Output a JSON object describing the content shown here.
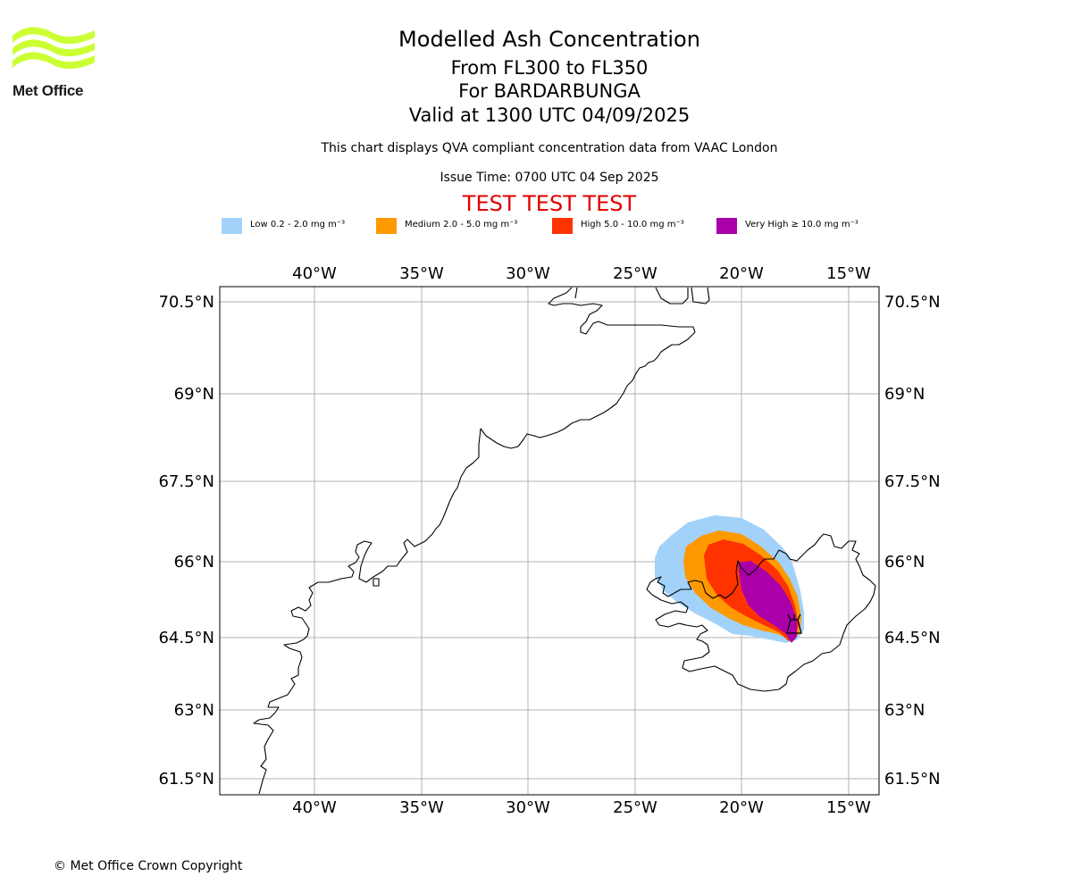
{
  "logo": {
    "text": "Met Office",
    "colors": {
      "waves": "#ccff33"
    }
  },
  "header": {
    "title": "Modelled Ash Concentration",
    "levels": "From FL300 to FL350",
    "volcano": "For BARDARBUNGA",
    "valid": "Valid at 1300 UTC 04/09/2025",
    "description": "This chart displays QVA compliant concentration data from VAAC London",
    "issue": "Issue Time: 0700 UTC 04 Sep 2025",
    "test_banner": "TEST TEST TEST"
  },
  "legend": [
    {
      "label": "Low 0.2 - 2.0 mg m⁻³",
      "color": "#a2d2fa"
    },
    {
      "label": "Medium 2.0 - 5.0 mg m⁻³",
      "color": "#ff9900"
    },
    {
      "label": "High 5.0 - 10.0 mg m⁻³",
      "color": "#ff3300"
    },
    {
      "label": "Very High ≥ 10.0 mg m⁻³",
      "color": "#aa00aa"
    }
  ],
  "map": {
    "lon_ticks": [
      "40°W",
      "35°W",
      "30°W",
      "25°W",
      "20°W",
      "15°W"
    ],
    "lat_ticks": [
      "70.5°N",
      "69°N",
      "67.5°N",
      "66°N",
      "64.5°N",
      "63°N",
      "61.5°N"
    ],
    "volcano_icon": "volcano-icon",
    "colors": {
      "coast": "#000000",
      "grid": "#b0b0b0"
    }
  },
  "footer": {
    "copyright": "© Met Office Crown Copyright"
  }
}
